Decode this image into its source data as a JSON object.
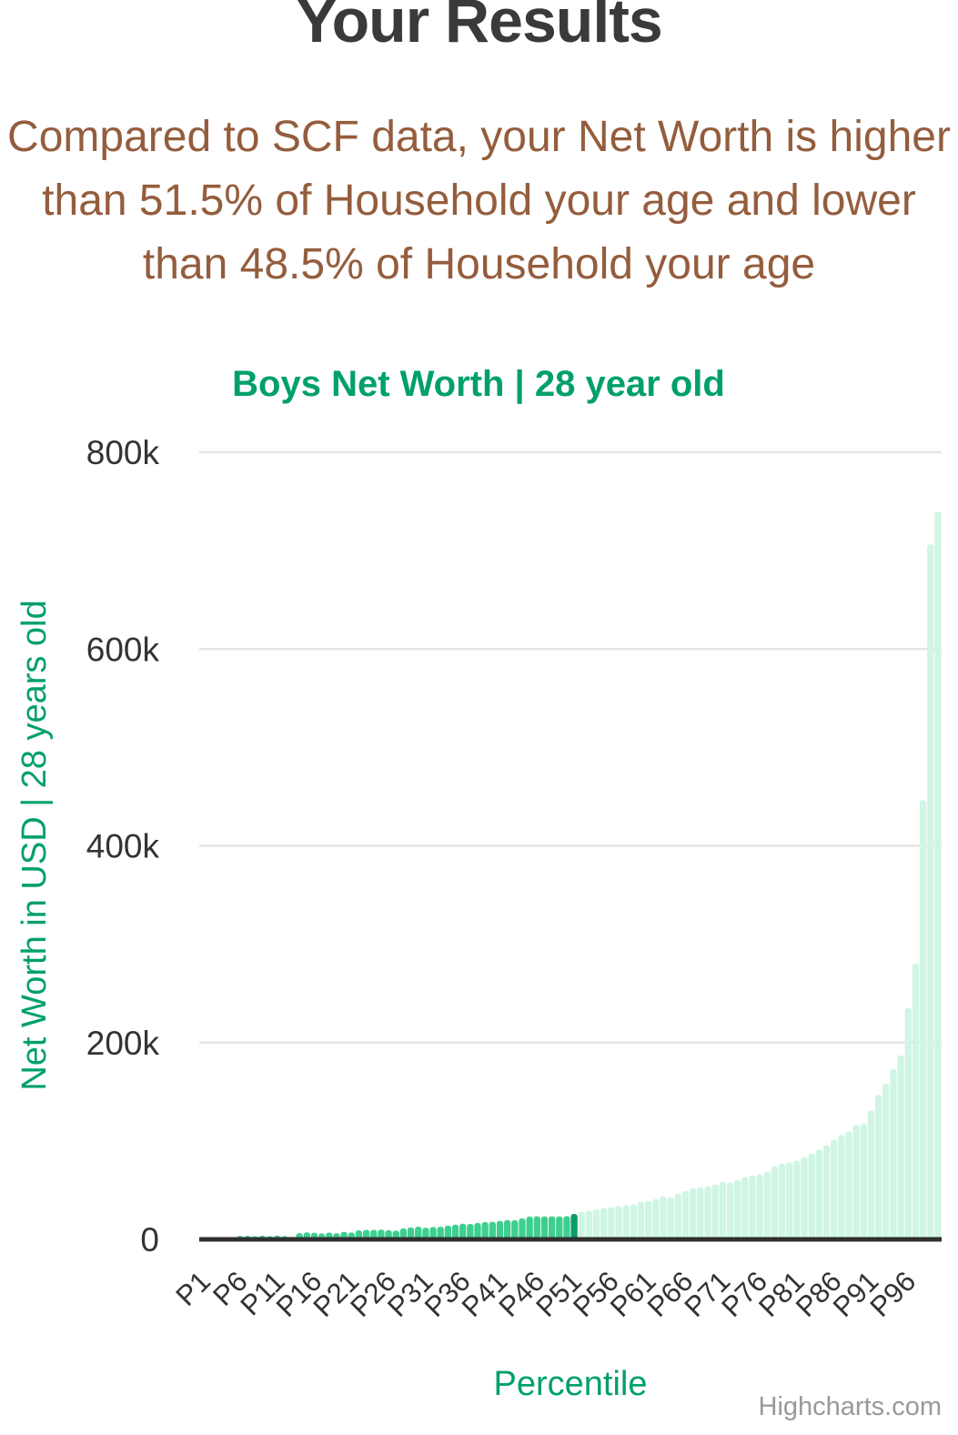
{
  "page": {
    "title": "Your Results",
    "subtitle_lines": [
      "Compared to SCF data, your Net Worth is higher",
      "than 51.5% of Household your age and lower",
      "than 48.5% of Household your age"
    ]
  },
  "chart_data": {
    "type": "bar",
    "title": "Boys Net Worth | 28 year old",
    "xlabel": "Percentile",
    "ylabel": "Net Worth in USD | 28 years old",
    "credit": "Highcharts.com",
    "legend": "none",
    "grid": true,
    "ylim": [
      0,
      800000
    ],
    "y_ticks": [
      0,
      200000,
      400000,
      600000,
      800000
    ],
    "y_tick_labels": [
      "0",
      "200k",
      "400k",
      "600k",
      "800k"
    ],
    "x_tick_labels": [
      "P1",
      "P6",
      "P11",
      "P16",
      "P21",
      "P26",
      "P31",
      "P36",
      "P41",
      "P46",
      "P51",
      "P56",
      "P61",
      "P66",
      "P71",
      "P76",
      "P81",
      "P86",
      "P91",
      "P96"
    ],
    "user_percentile": "P51",
    "user_percentile_index": 51,
    "user_higher_than_pct": 51.5,
    "user_lower_than_pct": 48.5,
    "colors": {
      "below_user_bar": "#3ecf90",
      "user_bar": "#0a9c6a",
      "above_user_bar": "#cff5e3",
      "title_green": "#00a06a",
      "subtitle_brown": "#945d3d",
      "axis_text": "#333333",
      "gridline": "#e6e6e6",
      "axis_line": "#2f2f2f",
      "credit_gray": "#999999"
    },
    "categories": [
      "P1",
      "P2",
      "P3",
      "P4",
      "P5",
      "P6",
      "P7",
      "P8",
      "P9",
      "P10",
      "P11",
      "P12",
      "P13",
      "P14",
      "P15",
      "P16",
      "P17",
      "P18",
      "P19",
      "P20",
      "P21",
      "P22",
      "P23",
      "P24",
      "P25",
      "P26",
      "P27",
      "P28",
      "P29",
      "P30",
      "P31",
      "P32",
      "P33",
      "P34",
      "P35",
      "P36",
      "P37",
      "P38",
      "P39",
      "P40",
      "P41",
      "P42",
      "P43",
      "P44",
      "P45",
      "P46",
      "P47",
      "P48",
      "P49",
      "P50",
      "P51",
      "P52",
      "P53",
      "P54",
      "P55",
      "P56",
      "P57",
      "P58",
      "P59",
      "P60",
      "P61",
      "P62",
      "P63",
      "P64",
      "P65",
      "P66",
      "P67",
      "P68",
      "P69",
      "P70",
      "P71",
      "P72",
      "P73",
      "P74",
      "P75",
      "P76",
      "P77",
      "P78",
      "P79",
      "P80",
      "P81",
      "P82",
      "P83",
      "P84",
      "P85",
      "P86",
      "P87",
      "P88",
      "P89",
      "P90",
      "P91",
      "P92",
      "P93",
      "P94",
      "P95",
      "P96",
      "P97",
      "P98",
      "P99",
      "P100"
    ],
    "values": [
      0,
      0,
      0,
      0,
      1000,
      3600,
      3700,
      3200,
      3800,
      3300,
      3900,
      3500,
      2600,
      6500,
      7200,
      6800,
      6100,
      6900,
      6400,
      7800,
      7100,
      9300,
      9700,
      9700,
      9900,
      9500,
      8900,
      11200,
      12300,
      13000,
      11900,
      12600,
      12900,
      14000,
      15000,
      15900,
      15700,
      16800,
      17700,
      17900,
      18800,
      19600,
      19500,
      21400,
      23200,
      23500,
      23400,
      23500,
      23400,
      23600,
      25900,
      28000,
      29100,
      30700,
      31900,
      32700,
      33800,
      34700,
      35400,
      38100,
      39100,
      40900,
      43700,
      42800,
      46500,
      49300,
      52100,
      53000,
      54100,
      55800,
      58600,
      57700,
      60500,
      63300,
      65100,
      66000,
      68800,
      74400,
      77200,
      78100,
      80000,
      83700,
      87400,
      91200,
      95800,
      101400,
      106100,
      109800,
      116300,
      117300,
      131100,
      146900,
      158100,
      173000,
      187000,
      235300,
      280100,
      446500,
      706500,
      739500
    ]
  }
}
